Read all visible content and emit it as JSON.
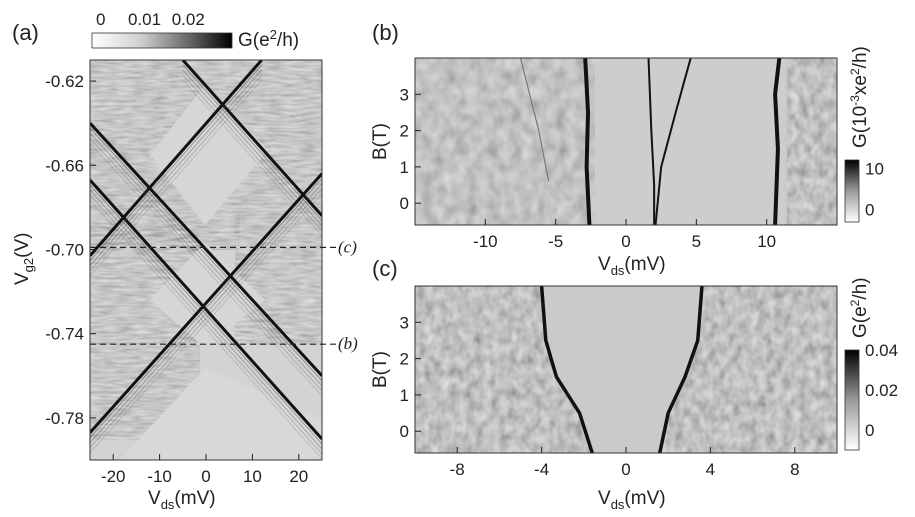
{
  "chart_data": [
    {
      "panel": "(a)",
      "type": "heatmap",
      "xlabel": "V_ds(mV)",
      "ylabel": "V_g2(V)",
      "xlim": [
        -25,
        25
      ],
      "ylim": [
        -0.8,
        -0.61
      ],
      "xticks": [
        "-20",
        "-10",
        "0",
        "10",
        "20"
      ],
      "xtick_values": [
        -20,
        -10,
        0,
        10,
        20
      ],
      "yticks": [
        "-0.62",
        "-0.66",
        "-0.70",
        "-0.74",
        "-0.78"
      ],
      "ytick_values": [
        -0.62,
        -0.66,
        -0.7,
        -0.74,
        -0.78
      ],
      "colorbar": {
        "label": "G(e²/h)",
        "ticks": [
          "0",
          "0.01",
          "0.02"
        ],
        "tick_values": [
          0,
          0.01,
          0.02
        ],
        "range": [
          -0.002,
          0.03
        ]
      },
      "cut_lines": [
        {
          "label": "(c)",
          "y": -0.699
        },
        {
          "label": "(b)",
          "y": -0.745
        }
      ],
      "diamond_edges": [
        {
          "x1": -25,
          "y1": -0.667,
          "x2": 25,
          "y2": -0.79
        },
        {
          "x1": -5,
          "y1": -0.61,
          "x2": 25,
          "y2": -0.684
        },
        {
          "x1": -25,
          "y1": -0.787,
          "x2": 25,
          "y2": -0.664
        },
        {
          "x1": -25,
          "y1": -0.703,
          "x2": 12,
          "y2": -0.61
        },
        {
          "x1": -25,
          "y1": -0.64,
          "x2": 25,
          "y2": -0.76
        }
      ]
    },
    {
      "panel": "(b)",
      "type": "heatmap",
      "xlabel": "V_ds(mV)",
      "ylabel": "B(T)",
      "xlim": [
        -15,
        15
      ],
      "ylim": [
        -0.6,
        4.0
      ],
      "xticks": [
        "-10",
        "-5",
        "0",
        "5",
        "10"
      ],
      "xtick_values": [
        -10,
        -5,
        0,
        5,
        10
      ],
      "yticks": [
        "0",
        "1",
        "2",
        "3"
      ],
      "ytick_values": [
        0,
        1,
        2,
        3
      ],
      "colorbar": {
        "label": "G(10⁻³xe²/h)",
        "ticks": [
          "10",
          "0"
        ],
        "tick_values": [
          10,
          0
        ],
        "range": [
          -3,
          12
        ]
      },
      "features": [
        {
          "name": "left edge",
          "points": [
            [
              -2.6,
              -0.6
            ],
            [
              -2.8,
              1.0
            ],
            [
              -2.7,
              2.5
            ],
            [
              -2.9,
              4.0
            ]
          ]
        },
        {
          "name": "right edge",
          "points": [
            [
              10.6,
              -0.6
            ],
            [
              10.8,
              1.5
            ],
            [
              10.6,
              3.0
            ],
            [
              10.9,
              4.0
            ]
          ]
        },
        {
          "name": "inner line 1",
          "points": [
            [
              2.0,
              -0.6
            ],
            [
              2.0,
              0.5
            ],
            [
              1.8,
              2.0
            ],
            [
              1.6,
              4.0
            ]
          ]
        },
        {
          "name": "inner line 2",
          "points": [
            [
              2.1,
              -0.6
            ],
            [
              2.5,
              1.0
            ],
            [
              3.6,
              2.6
            ],
            [
              4.6,
              4.0
            ]
          ]
        },
        {
          "name": "faint line",
          "points": [
            [
              -5.5,
              0.6
            ],
            [
              -6.2,
              2.0
            ],
            [
              -7.5,
              4.0
            ]
          ]
        }
      ]
    },
    {
      "panel": "(c)",
      "type": "heatmap",
      "xlabel": "V_ds(mV)",
      "ylabel": "B(T)",
      "xlim": [
        -10,
        10
      ],
      "ylim": [
        -0.6,
        4.0
      ],
      "xticks": [
        "-8",
        "-4",
        "0",
        "4",
        "8"
      ],
      "xtick_values": [
        -8,
        -4,
        0,
        4,
        8
      ],
      "yticks": [
        "0",
        "1",
        "2",
        "3"
      ],
      "ytick_values": [
        0,
        1,
        2,
        3
      ],
      "colorbar": {
        "label": "G(e²/h)",
        "ticks": [
          "0.04",
          "0.02",
          "0"
        ],
        "tick_values": [
          0.04,
          0.02,
          0
        ],
        "range": [
          -0.01,
          0.04
        ]
      },
      "gap_edges": [
        {
          "name": "left edge",
          "points": [
            [
              -1.6,
              -0.6
            ],
            [
              -2.2,
              0.5
            ],
            [
              -3.3,
              1.5
            ],
            [
              -3.8,
              2.5
            ],
            [
              -4.0,
              4.0
            ]
          ]
        },
        {
          "name": "right edge",
          "points": [
            [
              1.6,
              -0.6
            ],
            [
              2.0,
              0.5
            ],
            [
              2.8,
              1.5
            ],
            [
              3.4,
              2.5
            ],
            [
              3.6,
              4.0
            ]
          ]
        }
      ]
    }
  ]
}
